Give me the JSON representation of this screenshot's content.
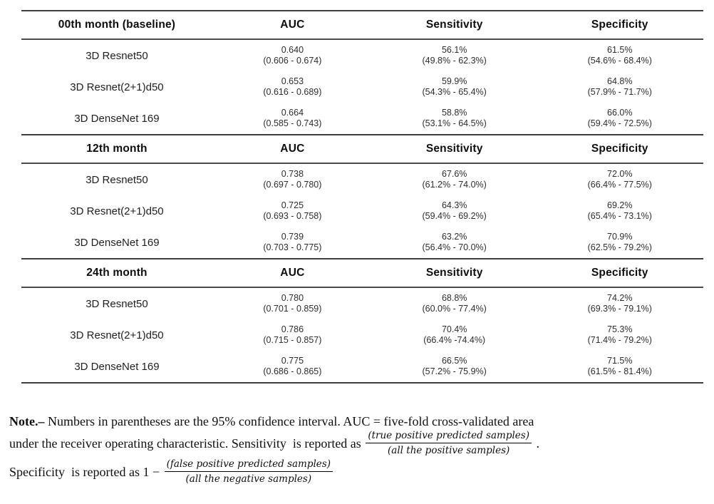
{
  "table": {
    "columns": [
      "AUC",
      "Sensitivity",
      "Specificity"
    ],
    "blocks": [
      {
        "period": "00th month (baseline)",
        "rows": [
          {
            "model": "3D Resnet50",
            "auc": "0.640",
            "auc_ci": "(0.606 - 0.674)",
            "sens": "56.1%",
            "sens_ci": "(49.8% - 62.3%)",
            "spec": "61.5%",
            "spec_ci": "(54.6% - 68.4%)"
          },
          {
            "model": "3D Resnet(2+1)d50",
            "auc": "0.653",
            "auc_ci": "(0.616 - 0.689)",
            "sens": "59.9%",
            "sens_ci": "(54.3% - 65.4%)",
            "spec": "64.8%",
            "spec_ci": "(57.9% - 71.7%)"
          },
          {
            "model": "3D DenseNet 169",
            "auc": "0.664",
            "auc_ci": "(0.585 - 0.743)",
            "sens": "58.8%",
            "sens_ci": "(53.1% - 64.5%)",
            "spec": "66.0%",
            "spec_ci": "(59.4% - 72.5%)"
          }
        ]
      },
      {
        "period": "12th month",
        "rows": [
          {
            "model": "3D Resnet50",
            "auc": "0.738",
            "auc_ci": "(0.697 - 0.780)",
            "sens": "67.6%",
            "sens_ci": "(61.2% - 74.0%)",
            "spec": "72.0%",
            "spec_ci": "(66.4% - 77.5%)"
          },
          {
            "model": "3D Resnet(2+1)d50",
            "auc": "0.725",
            "auc_ci": "(0.693 - 0.758)",
            "sens": "64.3%",
            "sens_ci": "(59.4% - 69.2%)",
            "spec": "69.2%",
            "spec_ci": "(65.4% - 73.1%)"
          },
          {
            "model": "3D DenseNet 169",
            "auc": "0.739",
            "auc_ci": "(0.703 - 0.775)",
            "sens": "63.2%",
            "sens_ci": "(56.4% - 70.0%)",
            "spec": "70.9%",
            "spec_ci": "(62.5% - 79.2%)"
          }
        ]
      },
      {
        "period": "24th month",
        "rows": [
          {
            "model": "3D Resnet50",
            "auc": "0.780",
            "auc_ci": "(0.701 - 0.859)",
            "sens": "68.8%",
            "sens_ci": "(60.0% - 77.4%)",
            "spec": "74.2%",
            "spec_ci": "(69.3% - 79.1%)"
          },
          {
            "model": "3D Resnet(2+1)d50",
            "auc": "0.786",
            "auc_ci": "(0.715 - 0.857)",
            "sens": "70.4%",
            "sens_ci": "(66.4% -74.4%)",
            "spec": "75.3%",
            "spec_ci": "(71.4% - 79.2%)"
          },
          {
            "model": "3D DenseNet 169",
            "auc": "0.775",
            "auc_ci": "(0.686 - 0.865)",
            "sens": "66.5%",
            "sens_ci": "(57.2% - 75.9%)",
            "spec": "71.5%",
            "spec_ci": "(61.5% - 81.4%)"
          }
        ]
      }
    ]
  },
  "note": {
    "label": "Note.–",
    "line1": " Numbers in parentheses are the 95% confidence interval. AUC = five-fold cross-validated area",
    "line2_prefix": "under the receiver operating characteristic. Sensitivity  is reported as",
    "frac1_num": "(true positive predicted samples)",
    "frac1_den": "(all the positive samples)",
    "line2_suffix": ".",
    "line3_prefix": "Specificity  is reported as 1 −",
    "frac2_num": "(false positive predicted samples)",
    "frac2_den": "(all the negative samples)"
  }
}
